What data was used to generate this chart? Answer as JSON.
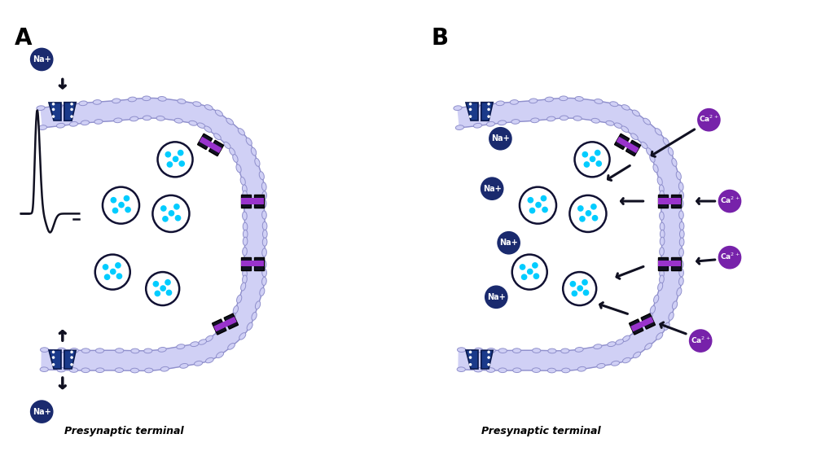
{
  "bg_color": "#ffffff",
  "membrane_color": "#c8c8f0",
  "membrane_fill": "#d0d0f5",
  "membrane_outline": "#9090cc",
  "vesicle_color": "#ffffff",
  "vesicle_outline": "#111133",
  "dot_color": "#00ccff",
  "na_bg": "#1a2a6e",
  "na_text": "#ffffff",
  "ca_bg": "#7722aa",
  "ca_text": "#ffffff",
  "channel_dark": "#111122",
  "channel_purple": "#9933cc",
  "channel_blue": "#1a3a8a",
  "channel_blue_light": "#2255cc",
  "channel_blue_dark": "#0a1a4e",
  "arrow_color": "#111122",
  "label_A": "A",
  "label_B": "B",
  "text_presynaptic": "Presynaptic terminal",
  "ap_color": "#111122"
}
